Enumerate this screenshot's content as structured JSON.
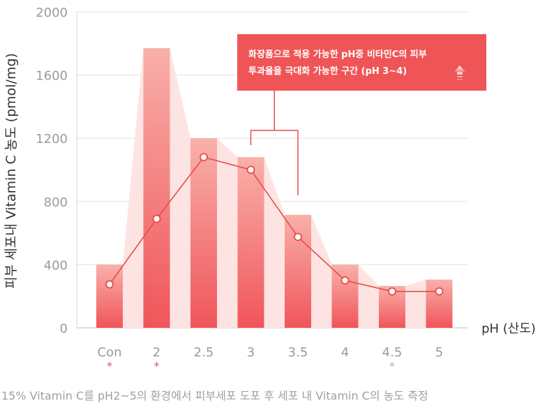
{
  "chart_data": {
    "type": "bar",
    "categories": [
      "Con",
      "2",
      "2.5",
      "3",
      "3.5",
      "4",
      "4.5",
      "5"
    ],
    "values": [
      400,
      1770,
      1200,
      1080,
      715,
      400,
      265,
      305
    ],
    "line_values": [
      275,
      690,
      1080,
      1000,
      575,
      300,
      230,
      230
    ],
    "significance": [
      "*",
      "*",
      "",
      "",
      "",
      "",
      "*",
      ""
    ],
    "significance_colors": [
      "#e84a4a",
      "#e84a4a",
      "",
      "",
      "",
      "",
      "#aaaaaa",
      ""
    ],
    "ylabel": "피부 세포내 Vitamin C 농도 (pmol/mg)",
    "xlabel": "pH (산도)",
    "ylim": [
      0,
      2000
    ],
    "yticks": [
      0,
      400,
      800,
      1200,
      1600,
      2000
    ],
    "grid": true,
    "callout": {
      "line1": "화장품으로 적용 가능한 pH중 비타민C의 피부",
      "line2": "투과율을 극대화 가능한 구간 (pH 3~4)",
      "bracket_from": "3",
      "bracket_to": "3.5"
    },
    "caption": "15% Vitamin C를 pH2~5의 환경에서 피부세포 도포 후 세포 내 Vitamin C의 농도 측정",
    "colors": {
      "bar_top": "#f9b0aa",
      "bar_bottom": "#f0555a",
      "band": "#fde4e2",
      "line": "#e84a4a",
      "callout_bg": "#ef5556",
      "grid": "#e2e2e2"
    }
  }
}
